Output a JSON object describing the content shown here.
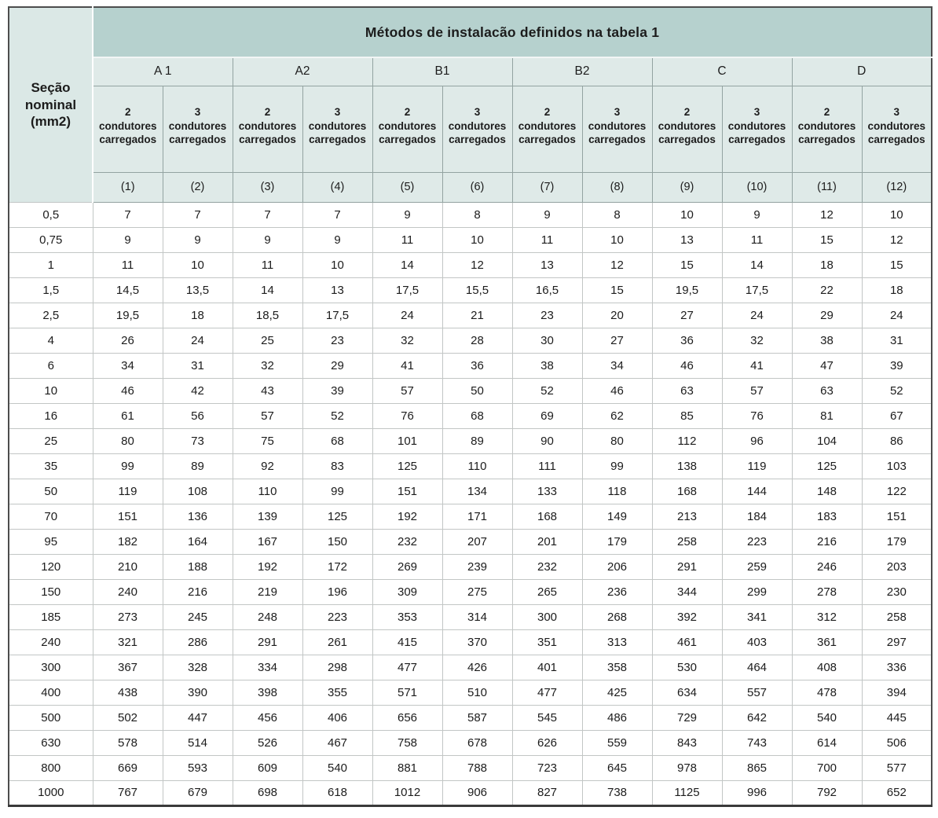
{
  "colors": {
    "header_band": "#b6d1ce",
    "header_light": "#dfeae8",
    "corner_cell": "#dbe8e6"
  },
  "table": {
    "title": "Métodos de instalacão definidos na tabela 1",
    "corner_header": "Seção\nnominal\n(mm2)",
    "groups": [
      {
        "label": "A 1"
      },
      {
        "label": "A2"
      },
      {
        "label": "B1"
      },
      {
        "label": "B2"
      },
      {
        "label": "C"
      },
      {
        "label": "D"
      }
    ],
    "columns": [
      {
        "label": "2\ncondutores\ncarregados",
        "number": "(1)"
      },
      {
        "label": "3\ncondutores\ncarregados",
        "number": "(2)"
      },
      {
        "label": "2\ncondutores\ncarregados",
        "number": "(3)"
      },
      {
        "label": "3\ncondutores\ncarregados",
        "number": "(4)"
      },
      {
        "label": "2\ncondutores\ncarregados",
        "number": "(5)"
      },
      {
        "label": "3\ncondutores\ncarregados",
        "number": "(6)"
      },
      {
        "label": "2\ncondutores\ncarregados",
        "number": "(7)"
      },
      {
        "label": "3\ncondutores\ncarregados",
        "number": "(8)"
      },
      {
        "label": "2\ncondutores\ncarregados",
        "number": "(9)"
      },
      {
        "label": "3\ncondutores\ncarregados",
        "number": "(10)"
      },
      {
        "label": "2\ncondutores\ncarregados",
        "number": "(11)"
      },
      {
        "label": "3\ncondutores\ncarregados",
        "number": "(12)"
      }
    ],
    "rows": [
      {
        "section": "0,5",
        "values": [
          "7",
          "7",
          "7",
          "7",
          "9",
          "8",
          "9",
          "8",
          "10",
          "9",
          "12",
          "10"
        ]
      },
      {
        "section": "0,75",
        "values": [
          "9",
          "9",
          "9",
          "9",
          "11",
          "10",
          "11",
          "10",
          "13",
          "11",
          "15",
          "12"
        ]
      },
      {
        "section": "1",
        "values": [
          "11",
          "10",
          "11",
          "10",
          "14",
          "12",
          "13",
          "12",
          "15",
          "14",
          "18",
          "15"
        ]
      },
      {
        "section": "1,5",
        "values": [
          "14,5",
          "13,5",
          "14",
          "13",
          "17,5",
          "15,5",
          "16,5",
          "15",
          "19,5",
          "17,5",
          "22",
          "18"
        ]
      },
      {
        "section": "2,5",
        "values": [
          "19,5",
          "18",
          "18,5",
          "17,5",
          "24",
          "21",
          "23",
          "20",
          "27",
          "24",
          "29",
          "24"
        ]
      },
      {
        "section": "4",
        "values": [
          "26",
          "24",
          "25",
          "23",
          "32",
          "28",
          "30",
          "27",
          "36",
          "32",
          "38",
          "31"
        ]
      },
      {
        "section": "6",
        "values": [
          "34",
          "31",
          "32",
          "29",
          "41",
          "36",
          "38",
          "34",
          "46",
          "41",
          "47",
          "39"
        ]
      },
      {
        "section": "10",
        "values": [
          "46",
          "42",
          "43",
          "39",
          "57",
          "50",
          "52",
          "46",
          "63",
          "57",
          "63",
          "52"
        ]
      },
      {
        "section": "16",
        "values": [
          "61",
          "56",
          "57",
          "52",
          "76",
          "68",
          "69",
          "62",
          "85",
          "76",
          "81",
          "67"
        ]
      },
      {
        "section": "25",
        "values": [
          "80",
          "73",
          "75",
          "68",
          "101",
          "89",
          "90",
          "80",
          "112",
          "96",
          "104",
          "86"
        ]
      },
      {
        "section": "35",
        "values": [
          "99",
          "89",
          "92",
          "83",
          "125",
          "110",
          "111",
          "99",
          "138",
          "119",
          "125",
          "103"
        ]
      },
      {
        "section": "50",
        "values": [
          "119",
          "108",
          "110",
          "99",
          "151",
          "134",
          "133",
          "118",
          "168",
          "144",
          "148",
          "122"
        ]
      },
      {
        "section": "70",
        "values": [
          "151",
          "136",
          "139",
          "125",
          "192",
          "171",
          "168",
          "149",
          "213",
          "184",
          "183",
          "151"
        ]
      },
      {
        "section": "95",
        "values": [
          "182",
          "164",
          "167",
          "150",
          "232",
          "207",
          "201",
          "179",
          "258",
          "223",
          "216",
          "179"
        ]
      },
      {
        "section": "120",
        "values": [
          "210",
          "188",
          "192",
          "172",
          "269",
          "239",
          "232",
          "206",
          "291",
          "259",
          "246",
          "203"
        ]
      },
      {
        "section": "150",
        "values": [
          "240",
          "216",
          "219",
          "196",
          "309",
          "275",
          "265",
          "236",
          "344",
          "299",
          "278",
          "230"
        ]
      },
      {
        "section": "185",
        "values": [
          "273",
          "245",
          "248",
          "223",
          "353",
          "314",
          "300",
          "268",
          "392",
          "341",
          "312",
          "258"
        ]
      },
      {
        "section": "240",
        "values": [
          "321",
          "286",
          "291",
          "261",
          "415",
          "370",
          "351",
          "313",
          "461",
          "403",
          "361",
          "297"
        ]
      },
      {
        "section": "300",
        "values": [
          "367",
          "328",
          "334",
          "298",
          "477",
          "426",
          "401",
          "358",
          "530",
          "464",
          "408",
          "336"
        ]
      },
      {
        "section": "400",
        "values": [
          "438",
          "390",
          "398",
          "355",
          "571",
          "510",
          "477",
          "425",
          "634",
          "557",
          "478",
          "394"
        ]
      },
      {
        "section": "500",
        "values": [
          "502",
          "447",
          "456",
          "406",
          "656",
          "587",
          "545",
          "486",
          "729",
          "642",
          "540",
          "445"
        ]
      },
      {
        "section": "630",
        "values": [
          "578",
          "514",
          "526",
          "467",
          "758",
          "678",
          "626",
          "559",
          "843",
          "743",
          "614",
          "506"
        ]
      },
      {
        "section": "800",
        "values": [
          "669",
          "593",
          "609",
          "540",
          "881",
          "788",
          "723",
          "645",
          "978",
          "865",
          "700",
          "577"
        ]
      },
      {
        "section": "1000",
        "values": [
          "767",
          "679",
          "698",
          "618",
          "1012",
          "906",
          "827",
          "738",
          "1125",
          "996",
          "792",
          "652"
        ]
      }
    ]
  }
}
